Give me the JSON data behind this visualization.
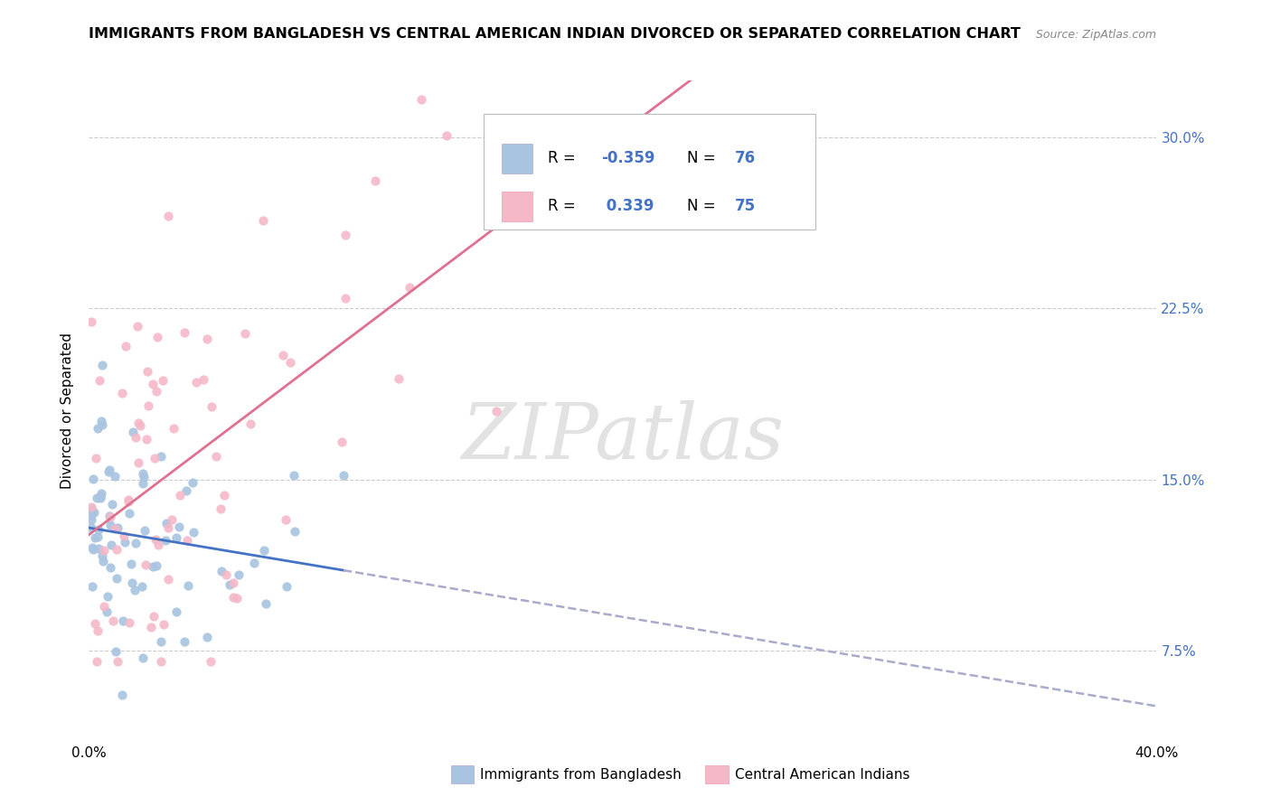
{
  "title": "IMMIGRANTS FROM BANGLADESH VS CENTRAL AMERICAN INDIAN DIVORCED OR SEPARATED CORRELATION CHART",
  "source": "Source: ZipAtlas.com",
  "ylabel": "Divorced or Separated",
  "ytick_vals": [
    0.075,
    0.15,
    0.225,
    0.3
  ],
  "ytick_labels": [
    "7.5%",
    "15.0%",
    "22.5%",
    "30.0%"
  ],
  "legend_blue_r": "-0.359",
  "legend_blue_n": "76",
  "legend_pink_r": "0.339",
  "legend_pink_n": "75",
  "legend_label_blue": "Immigrants from Bangladesh",
  "legend_label_pink": "Central American Indians",
  "blue_color": "#a8c4e0",
  "pink_color": "#f4b8c8",
  "blue_line_color": "#4472c4",
  "pink_line_color": "#e07090",
  "dashed_line_color": "#aaaacc",
  "xlim": [
    0.0,
    0.4
  ],
  "ylim": [
    0.035,
    0.325
  ]
}
